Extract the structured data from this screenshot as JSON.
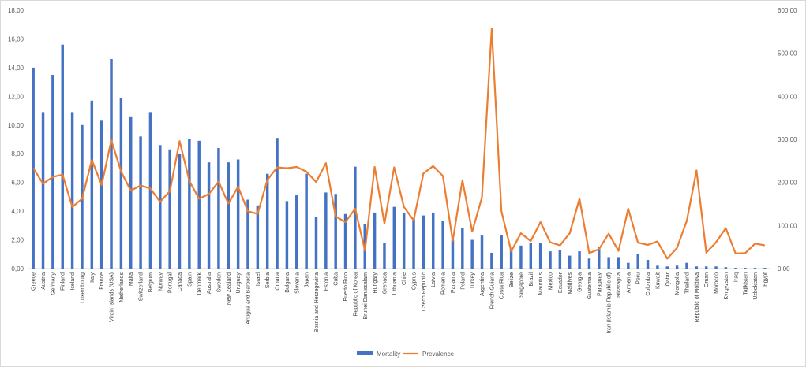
{
  "chart_data": {
    "type": "bar+line",
    "categories": [
      "Greece",
      "Austria",
      "Germany",
      "Finland",
      "Iceland",
      "Luxembourg",
      "Italy",
      "France",
      "Virgin Islands (USA)",
      "Netherlands",
      "Malta",
      "Switzerland",
      "Belgium",
      "Norway",
      "Portugal",
      "Canada",
      "Spain",
      "Denmark",
      "Australia",
      "Sweden",
      "New Zealand",
      "Uruguay",
      "Antigua and Barbuda",
      "Israel",
      "Serbia",
      "Croatia",
      "Bulgaria",
      "Slovenia",
      "Japan",
      "Bosnia and Herzegovina",
      "Estonia",
      "Cuba",
      "Puerto Rico",
      "Republic of Korea",
      "Brunei Darussalam",
      "Hungary",
      "Grenada",
      "Lithuania",
      "Chile",
      "Cyprus",
      "Czech Republic",
      "Latvia",
      "Romania",
      "Panama",
      "Poland",
      "Turkey",
      "Argentina",
      "French Guiana",
      "Costa Rica",
      "Belize",
      "Singapore",
      "Brazil",
      "Mauritius",
      "Mexico",
      "Ecuador",
      "Maldives",
      "Georgia",
      "Guatemala",
      "Paraguay",
      "Iran (Islamic Republic of)",
      "Nicaragua",
      "Armenia",
      "Peru",
      "Colombia",
      "Kuwait",
      "Qatar",
      "Mongolia",
      "Thailand",
      "Republic of Moldova",
      "Oman",
      "Morocco",
      "Kyrgyzstan",
      "Iraq",
      "Tajikistan",
      "Uzbekistan",
      "Egypt"
    ],
    "series": [
      {
        "name": "Mortality",
        "axis": "left",
        "kind": "bar",
        "values": [
          14.0,
          10.9,
          13.5,
          15.6,
          10.9,
          10.0,
          11.7,
          10.3,
          14.6,
          11.9,
          10.6,
          9.2,
          10.9,
          8.6,
          8.3,
          8.0,
          9.0,
          8.9,
          7.4,
          8.4,
          7.4,
          7.6,
          4.8,
          4.4,
          6.6,
          9.1,
          4.7,
          5.1,
          6.6,
          3.6,
          5.3,
          5.2,
          3.8,
          7.1,
          3.1,
          3.9,
          1.8,
          4.3,
          3.9,
          3.5,
          3.7,
          3.9,
          3.3,
          2.0,
          2.8,
          2.0,
          2.3,
          1.1,
          2.3,
          1.4,
          1.6,
          1.8,
          1.8,
          1.2,
          1.3,
          0.9,
          1.2,
          0.7,
          1.5,
          0.8,
          0.8,
          0.4,
          1.0,
          0.6,
          0.2,
          0.15,
          0.2,
          0.4,
          0.15,
          0.15,
          0.15,
          0.1,
          0.05,
          0.05,
          0.05,
          0.05
        ]
      },
      {
        "name": "Prevalence",
        "axis": "right",
        "kind": "line",
        "values": [
          233,
          197,
          213,
          218,
          143,
          162,
          252,
          194,
          298,
          225,
          181,
          193,
          186,
          155,
          180,
          296,
          203,
          162,
          173,
          202,
          151,
          190,
          133,
          127,
          206,
          235,
          233,
          236,
          225,
          201,
          245,
          121,
          108,
          139,
          42,
          236,
          104,
          235,
          143,
          112,
          221,
          238,
          215,
          64,
          205,
          86,
          165,
          557,
          133,
          40,
          82,
          64,
          108,
          61,
          54,
          82,
          162,
          36,
          45,
          81,
          41,
          139,
          60,
          55,
          63,
          23,
          48,
          111,
          228,
          37,
          61,
          94,
          35,
          36,
          58,
          54
        ]
      }
    ],
    "y_left": {
      "ticks": [
        "0,00",
        "2,00",
        "4,00",
        "6,00",
        "8,00",
        "10,00",
        "12,00",
        "14,00",
        "16,00",
        "18,00"
      ],
      "min": 0,
      "max": 18
    },
    "y_right": {
      "ticks": [
        "0,00",
        "100,00",
        "200,00",
        "300,00",
        "400,00",
        "500,00",
        "600,00"
      ],
      "min": 0,
      "max": 600
    },
    "xlabel": "",
    "ylabel": "",
    "title": "",
    "grid": false,
    "legend_position": "bottom",
    "colors": {
      "Mortality": "#4472c4",
      "Prevalence": "#ed7d31",
      "axis": "#595959"
    }
  }
}
